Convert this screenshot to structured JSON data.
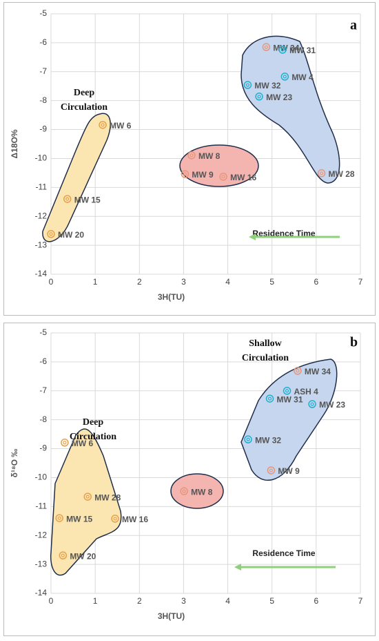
{
  "chart_data": [
    {
      "type": "scatter",
      "panel_label": "a",
      "xlabel": "3H(TU)",
      "ylabel": "Δ18O%",
      "xlim": [
        0,
        7
      ],
      "ylim": [
        -14,
        -5
      ],
      "xticks": [
        0,
        1,
        2,
        3,
        4,
        5,
        6,
        7
      ],
      "yticks": [
        -14,
        -13,
        -12,
        -11,
        -10,
        -9,
        -8,
        -7,
        -6,
        -5
      ],
      "grid": true,
      "annotations": {
        "deep": [
          "Deep",
          "Circulation"
        ],
        "residence": "Residence Time"
      },
      "points": [
        {
          "label": "MW 34",
          "x": 4.87,
          "y": -6.15,
          "color": "#e8957a"
        },
        {
          "label": "MW 31",
          "x": 5.24,
          "y": -6.24,
          "color": "#1fb0d0"
        },
        {
          "label": "MW 4",
          "x": 5.29,
          "y": -7.17,
          "color": "#1fb0d0"
        },
        {
          "label": "MW 32",
          "x": 4.45,
          "y": -7.46,
          "color": "#1fb0d0"
        },
        {
          "label": "MW 23",
          "x": 4.71,
          "y": -7.86,
          "color": "#1fb0d0"
        },
        {
          "label": "MW 28",
          "x": 6.12,
          "y": -10.51,
          "color": "#e8957a"
        },
        {
          "label": "MW 8",
          "x": 3.18,
          "y": -9.89,
          "color": "#e8957a"
        },
        {
          "label": "MW 9",
          "x": 3.03,
          "y": -10.54,
          "color": "#e8957a"
        },
        {
          "label": "MW 16",
          "x": 3.9,
          "y": -10.63,
          "color": "#e8957a"
        },
        {
          "label": "MW 6",
          "x": 1.17,
          "y": -8.84,
          "color": "#e8a04a"
        },
        {
          "label": "MW 15",
          "x": 0.37,
          "y": -11.4,
          "color": "#e8a04a"
        },
        {
          "label": "MW 20",
          "x": 0,
          "y": -12.61,
          "color": "#e8a04a"
        }
      ]
    },
    {
      "type": "scatter",
      "panel_label": "b",
      "xlabel": "3H(TU)",
      "ylabel": "δ¹⁸O ‰",
      "xlim": [
        0,
        7
      ],
      "ylim": [
        -14,
        -5
      ],
      "xticks": [
        0,
        1,
        2,
        3,
        4,
        5,
        6,
        7
      ],
      "yticks": [
        -14,
        -13,
        -12,
        -11,
        -10,
        -9,
        -8,
        -7,
        -6,
        -5
      ],
      "grid": true,
      "annotations": {
        "deep": [
          "Deep",
          "Circulation"
        ],
        "shallow": [
          "Shallow",
          "Circulation"
        ],
        "residence": "Residence Time"
      },
      "points": [
        {
          "label": "MW 34",
          "x": 5.58,
          "y": -6.31,
          "color": "#e8957a"
        },
        {
          "label": "ASH 4",
          "x": 5.34,
          "y": -7.0,
          "color": "#1fb0d0"
        },
        {
          "label": "MW 31",
          "x": 4.95,
          "y": -7.27,
          "color": "#1fb0d0"
        },
        {
          "label": "MW 23",
          "x": 5.91,
          "y": -7.46,
          "color": "#1fb0d0"
        },
        {
          "label": "MW 32",
          "x": 4.46,
          "y": -8.68,
          "color": "#1fb0d0"
        },
        {
          "label": "MW 9",
          "x": 4.98,
          "y": -9.75,
          "color": "#e8957a"
        },
        {
          "label": "MW 8",
          "x": 3.01,
          "y": -10.47,
          "color": "#e8957a"
        },
        {
          "label": "MW 6",
          "x": 0.31,
          "y": -8.79,
          "color": "#e8a04a"
        },
        {
          "label": "MW 28",
          "x": 0.83,
          "y": -10.66,
          "color": "#e8a04a"
        },
        {
          "label": "MW 15",
          "x": 0.19,
          "y": -11.4,
          "color": "#e8a04a"
        },
        {
          "label": "MW 16",
          "x": 1.45,
          "y": -11.42,
          "color": "#e8a04a"
        },
        {
          "label": "MW 20",
          "x": 0.27,
          "y": -12.69,
          "color": "#e8a04a"
        }
      ]
    }
  ]
}
